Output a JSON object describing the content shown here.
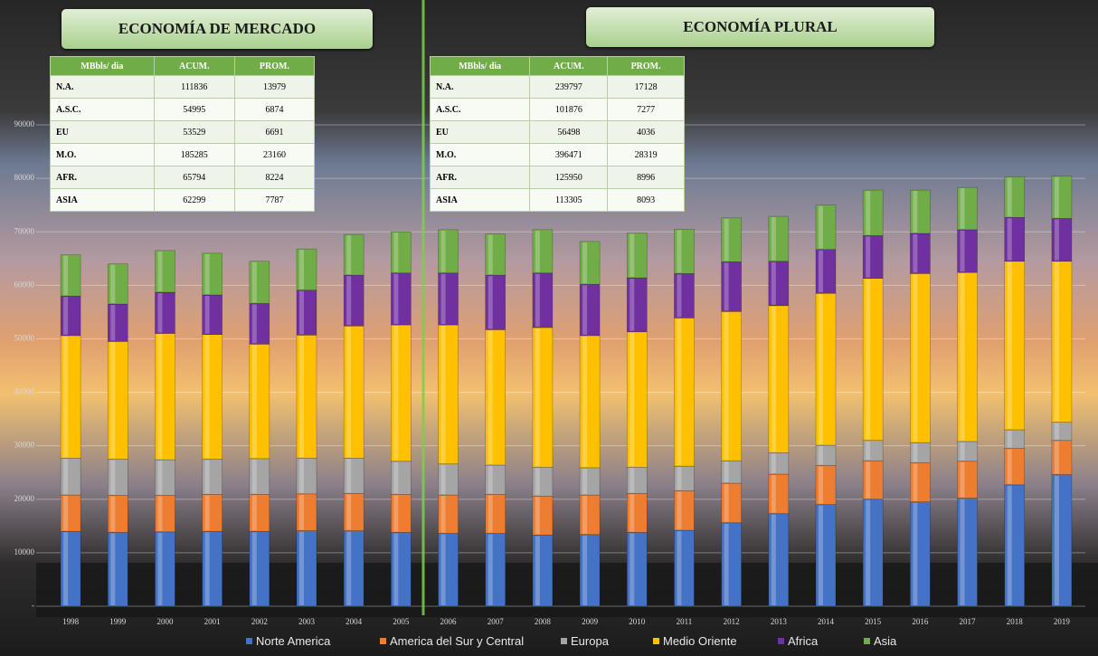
{
  "headers": [
    "ECONOMÍA DE MERCADO",
    "ECONOMÍA PLURAL"
  ],
  "tables": [
    {
      "columns": [
        "MBbls/ dia",
        "ACUM.",
        "PROM."
      ],
      "rows": [
        [
          "N.A.",
          111836,
          13979
        ],
        [
          "A.S.C.",
          54995,
          6874
        ],
        [
          "EU",
          53529,
          6691
        ],
        [
          "M.O.",
          185285,
          23160
        ],
        [
          "AFR.",
          65794,
          8224
        ],
        [
          "ASIA",
          62299,
          7787
        ]
      ]
    },
    {
      "columns": [
        "MBbls/ dia",
        "ACUM.",
        "PROM."
      ],
      "rows": [
        [
          "N.A.",
          239797,
          17128
        ],
        [
          "A.S.C.",
          101876,
          7277
        ],
        [
          "EU",
          56498,
          4036
        ],
        [
          "M.O.",
          396471,
          28319
        ],
        [
          "AFR.",
          125950,
          8996
        ],
        [
          "ASIA",
          113305,
          8093
        ]
      ]
    }
  ],
  "chart_data": {
    "type": "stacked_bar",
    "categories": [
      "1998",
      "1999",
      "2000",
      "2001",
      "2002",
      "2003",
      "2004",
      "2005",
      "2006",
      "2007",
      "2008",
      "2009",
      "2010",
      "2011",
      "2012",
      "2013",
      "2014",
      "2015",
      "2016",
      "2017",
      "2018",
      "2019"
    ],
    "series": [
      {
        "name": "Norte America",
        "color": "#4472c4",
        "values": [
          14000,
          13800,
          13900,
          14000,
          14000,
          14100,
          14100,
          13800,
          13600,
          13600,
          13300,
          13400,
          13800,
          14200,
          15600,
          17300,
          19000,
          20000,
          19500,
          20200,
          22700,
          24600
        ]
      },
      {
        "name": "America del Sur y Central",
        "color": "#ed7d31",
        "values": [
          6800,
          6900,
          6800,
          6900,
          6900,
          6900,
          7000,
          7100,
          7200,
          7300,
          7300,
          7400,
          7300,
          7400,
          7400,
          7400,
          7300,
          7200,
          7300,
          6900,
          6800,
          6400
        ]
      },
      {
        "name": "Europa",
        "color": "#a5a5a5",
        "values": [
          6900,
          6800,
          6700,
          6600,
          6700,
          6700,
          6600,
          6200,
          5800,
          5500,
          5400,
          5100,
          4900,
          4600,
          4200,
          4000,
          3800,
          3800,
          3800,
          3700,
          3500,
          3400
        ]
      },
      {
        "name": "Medio Oriente",
        "color": "#ffc000",
        "values": [
          22900,
          22000,
          23600,
          23300,
          21400,
          23000,
          24700,
          25500,
          26000,
          25300,
          26100,
          24700,
          25300,
          27700,
          27900,
          27500,
          28400,
          30300,
          31600,
          31600,
          31500,
          30100
        ]
      },
      {
        "name": "Africa",
        "color": "#7030a0",
        "values": [
          7400,
          7000,
          7700,
          7400,
          7600,
          8400,
          9500,
          9700,
          9700,
          10200,
          10200,
          9600,
          10100,
          8300,
          9300,
          8300,
          8200,
          8000,
          7500,
          8000,
          8200,
          8000
        ]
      },
      {
        "name": "Asia",
        "color": "#70ad47",
        "values": [
          7700,
          7500,
          7800,
          7800,
          7900,
          7700,
          7600,
          7700,
          8100,
          7700,
          8100,
          8000,
          8400,
          8300,
          8200,
          8400,
          8300,
          8500,
          8100,
          7900,
          7600,
          7900
        ]
      }
    ],
    "ylim": [
      0,
      90000
    ],
    "yticks": [
      {
        "value": 0,
        "label": "-"
      },
      10000,
      20000,
      30000,
      40000,
      50000,
      60000,
      70000,
      80000,
      90000
    ],
    "grid": true
  }
}
